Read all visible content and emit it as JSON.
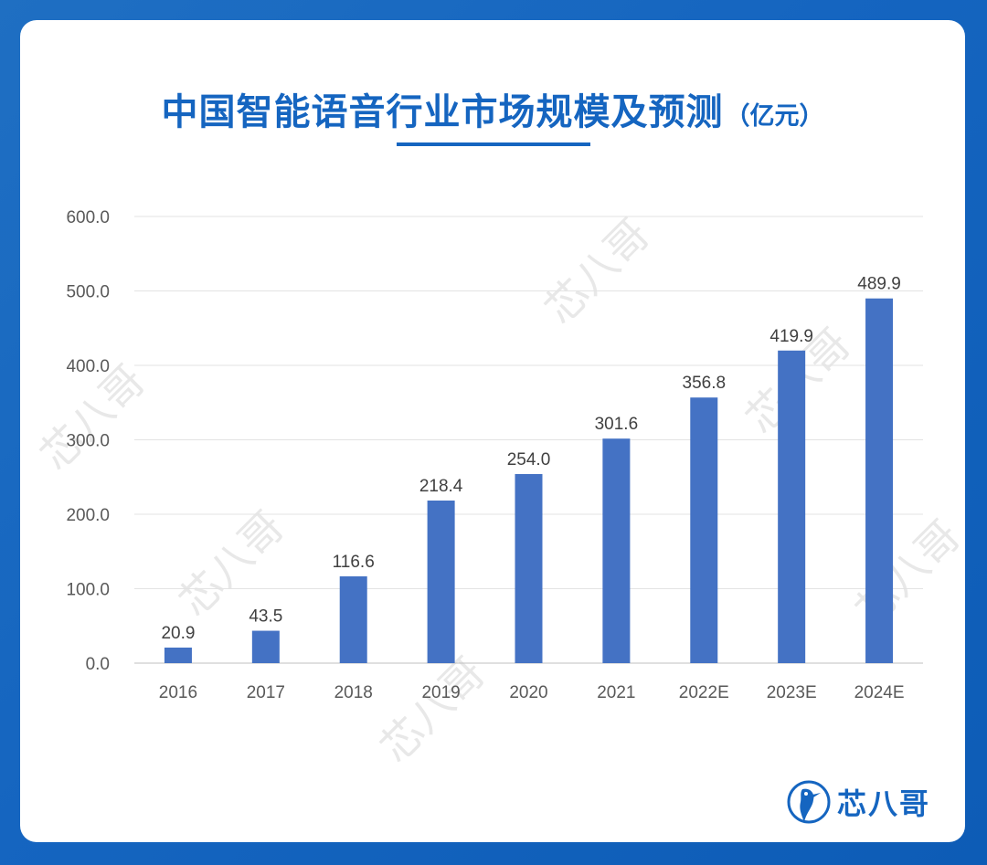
{
  "header": {
    "title": "中国智能语音行业市场规模及预测",
    "unit": "（亿元）"
  },
  "watermark": {
    "text": "芯八哥"
  },
  "logo": {
    "text": "芯八哥",
    "icon": "bird-icon"
  },
  "colors": {
    "bar": "#4472c4",
    "accent": "#1565c0",
    "background": "#1565c0"
  },
  "chart_data": {
    "type": "bar",
    "title": "中国智能语音行业市场规模及预测（亿元）",
    "categories": [
      "2016",
      "2017",
      "2018",
      "2019",
      "2020",
      "2021",
      "2022E",
      "2023E",
      "2024E"
    ],
    "values": [
      20.9,
      43.5,
      116.6,
      218.4,
      254.0,
      301.6,
      356.8,
      419.9,
      489.9
    ],
    "value_labels": [
      "20.9",
      "43.5",
      "116.6",
      "218.4",
      "254.0",
      "301.6",
      "356.8",
      "419.9",
      "489.9"
    ],
    "yticks": [
      "0.0",
      "100.0",
      "200.0",
      "300.0",
      "400.0",
      "500.0",
      "600.0"
    ],
    "ylim": [
      0,
      600
    ],
    "xlabel": "",
    "ylabel": "",
    "grid": true,
    "legend": "none"
  }
}
